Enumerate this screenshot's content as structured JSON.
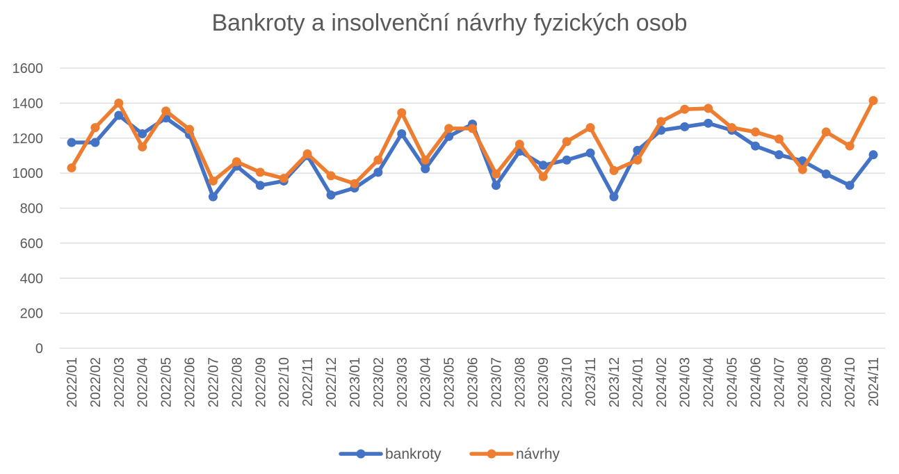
{
  "chart_data": {
    "type": "line",
    "title": "Bankroty a insolvenční návrhy fyzických osob",
    "xlabel": "",
    "ylabel": "",
    "ylim": [
      0,
      1600
    ],
    "yticks": [
      0,
      200,
      400,
      600,
      800,
      1000,
      1200,
      1400,
      1600
    ],
    "grid": true,
    "legend_position": "bottom",
    "categories": [
      "2022/01",
      "2022/02",
      "2022/03",
      "2022/04",
      "2022/05",
      "2022/06",
      "2022/07",
      "2022/08",
      "2022/09",
      "2022/10",
      "2022/11",
      "2022/12",
      "2023/01",
      "2023/02",
      "2023/03",
      "2023/04",
      "2023/05",
      "2023/06",
      "2023/07",
      "2023/08",
      "2023/09",
      "2023/10",
      "2023/11",
      "2023/12",
      "2024/01",
      "2024/02",
      "2024/03",
      "2024/04",
      "2024/05",
      "2024/06",
      "2024/07",
      "2024/08",
      "2024/09",
      "2024/10",
      "2024/11"
    ],
    "series": [
      {
        "name": "bankroty",
        "color": "#4472C4",
        "values": [
          1175,
          1175,
          1330,
          1225,
          1315,
          1220,
          865,
          1040,
          930,
          955,
          1100,
          875,
          915,
          1005,
          1225,
          1025,
          1210,
          1280,
          930,
          1125,
          1045,
          1075,
          1115,
          865,
          1130,
          1245,
          1265,
          1285,
          1245,
          1155,
          1105,
          1070,
          995,
          930,
          1105
        ]
      },
      {
        "name": "návrhy",
        "color": "#ED7D31",
        "values": [
          1030,
          1260,
          1400,
          1150,
          1355,
          1250,
          955,
          1065,
          1005,
          970,
          1110,
          985,
          940,
          1075,
          1345,
          1075,
          1255,
          1255,
          995,
          1165,
          980,
          1180,
          1260,
          1015,
          1075,
          1295,
          1365,
          1370,
          1260,
          1235,
          1195,
          1020,
          1235,
          1155,
          1415
        ]
      }
    ]
  }
}
